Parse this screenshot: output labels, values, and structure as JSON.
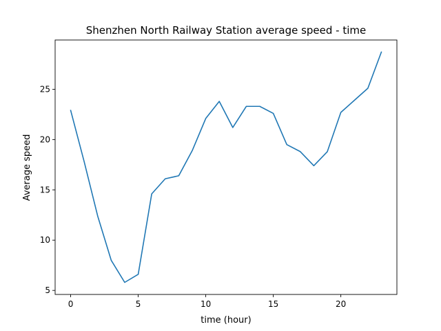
{
  "chart_data": {
    "type": "line",
    "title": "Shenzhen North Railway Station average speed - time",
    "xlabel": "time (hour)",
    "ylabel": "Average speed",
    "xlim": [
      -1.15,
      24.15
    ],
    "ylim": [
      4.6,
      29.9
    ],
    "x_ticks": [
      0,
      5,
      10,
      15,
      20
    ],
    "y_ticks": [
      5,
      10,
      15,
      20,
      25
    ],
    "grid": false,
    "legend": "none",
    "series": [
      {
        "color": "#1f77b4",
        "x": [
          0,
          1,
          2,
          3,
          4,
          5,
          6,
          7,
          8,
          9,
          10,
          11,
          12,
          13,
          14,
          15,
          16,
          17,
          18,
          19,
          20,
          21,
          22,
          23
        ],
        "y": [
          22.9,
          17.8,
          12.4,
          8.0,
          5.8,
          6.6,
          14.6,
          16.1,
          16.4,
          18.9,
          22.1,
          23.8,
          21.2,
          23.3,
          23.3,
          22.6,
          19.5,
          18.8,
          17.4,
          18.8,
          22.7,
          23.9,
          25.1,
          28.7
        ]
      }
    ]
  }
}
